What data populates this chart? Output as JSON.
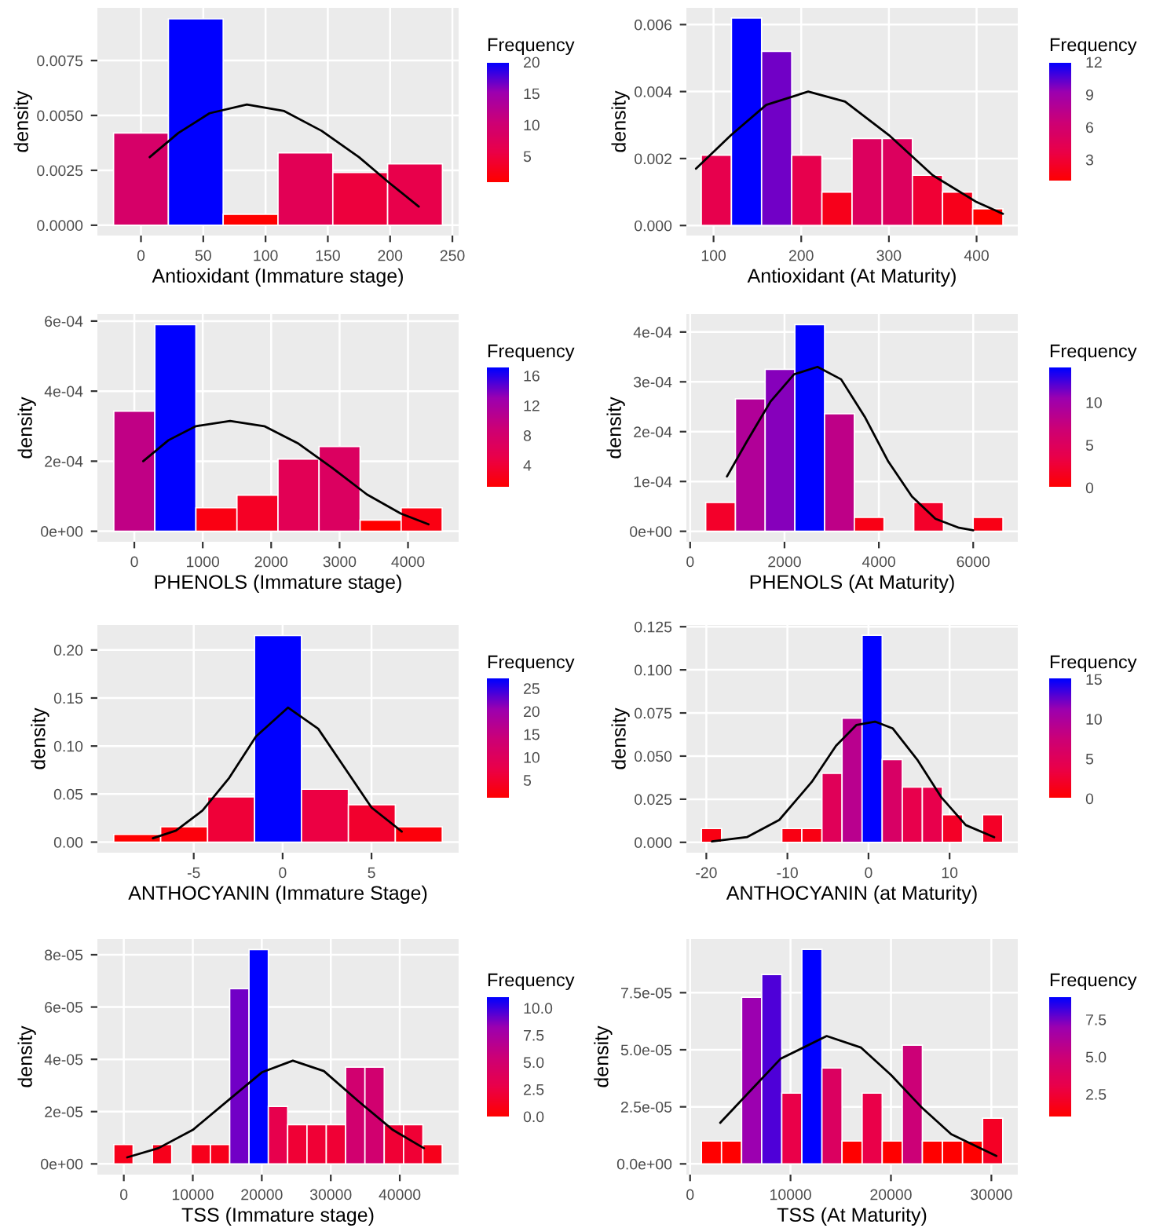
{
  "chart_data": [
    {
      "type": "histogram",
      "xlabel": "Antioxidant (Immature stage)",
      "ylabel": "density",
      "clabel": "Frequency",
      "grid": true,
      "xlim": [
        -35,
        255
      ],
      "xticks": [
        0,
        50,
        100,
        150,
        200,
        250
      ],
      "ylim": [
        -0.00047,
        0.0099
      ],
      "yticks": [
        {
          "value": 0,
          "label": "0.0000"
        },
        {
          "value": 0.0025,
          "label": "0.0025"
        },
        {
          "value": 0.005,
          "label": "0.0050"
        },
        {
          "value": 0.0075,
          "label": "0.0075"
        }
      ],
      "clim": [
        1,
        20
      ],
      "cticks": [
        5,
        10,
        15,
        20
      ],
      "series": [
        {
          "type": "histogram",
          "bins": [
            -22,
            22,
            66,
            110,
            154,
            198,
            242
          ],
          "values": [
            0.0042,
            0.0094,
            0.0005,
            0.0033,
            0.0024,
            0.0028
          ],
          "colors": [
            "#d60068",
            "#0000ff",
            "#ff0000",
            "#e20055",
            "#ed003d",
            "#e8004b"
          ]
        },
        {
          "type": "line",
          "color": "#000000",
          "x": [
            7,
            30,
            55,
            85,
            115,
            145,
            175,
            200,
            223
          ],
          "values": [
            0.0031,
            0.0042,
            0.0051,
            0.0055,
            0.0052,
            0.0043,
            0.0031,
            0.0019,
            0.00085
          ]
        }
      ]
    },
    {
      "type": "histogram",
      "xlabel": "Antioxidant (At Maturity)",
      "ylabel": "density",
      "clabel": "Frequency",
      "grid": true,
      "xlim": [
        69,
        447
      ],
      "xticks": [
        100,
        200,
        300,
        400
      ],
      "ylim": [
        -0.0003,
        0.0065
      ],
      "yticks": [
        {
          "value": 0,
          "label": "0.000"
        },
        {
          "value": 0.002,
          "label": "0.002"
        },
        {
          "value": 0.004,
          "label": "0.004"
        },
        {
          "value": 0.006,
          "label": "0.006"
        }
      ],
      "clim": [
        1,
        12
      ],
      "cticks": [
        3,
        6,
        9,
        12
      ],
      "series": [
        {
          "type": "histogram",
          "bins": [
            86,
            120.4,
            154.8,
            189.2,
            223.6,
            258,
            292.4,
            326.8,
            361.2,
            395.6,
            430
          ],
          "values": [
            0.0021,
            0.0062,
            0.0052,
            0.0021,
            0.001,
            0.0026,
            0.0026,
            0.0015,
            0.001,
            0.0005
          ],
          "colors": [
            "#e7004d",
            "#0000ff",
            "#7100c6",
            "#e7004d",
            "#f7001b",
            "#dc005e",
            "#dc005e",
            "#f00035",
            "#f7001b",
            "#ff0000"
          ]
        },
        {
          "type": "line",
          "color": "#000000",
          "x": [
            80,
            120,
            160,
            208,
            250,
            300,
            350,
            400,
            430
          ],
          "values": [
            0.0017,
            0.0027,
            0.0036,
            0.004,
            0.0037,
            0.0027,
            0.0015,
            0.0007,
            0.00035
          ]
        }
      ]
    },
    {
      "type": "histogram",
      "xlabel": "PHENOLS (Immature stage)",
      "ylabel": "density",
      "clabel": "Frequency",
      "grid": true,
      "xlim": [
        -540,
        4740
      ],
      "xticks": [
        0,
        1000,
        2000,
        3000,
        4000
      ],
      "ylim": [
        -3e-05,
        0.00062
      ],
      "yticks": [
        {
          "value": 0,
          "label": "0e+00"
        },
        {
          "value": 0.0002,
          "label": "2e-04"
        },
        {
          "value": 0.0004,
          "label": "4e-04"
        },
        {
          "value": 0.0006,
          "label": "6e-04"
        }
      ],
      "clim": [
        1,
        17
      ],
      "cticks": [
        4,
        8,
        12,
        16
      ],
      "series": [
        {
          "type": "histogram",
          "bins": [
            -300,
            300,
            900,
            1500,
            2100,
            2700,
            3300,
            3900,
            4500
          ],
          "values": [
            0.000343,
            0.00059,
            6.7e-05,
            0.000103,
            0.000206,
            0.000242,
            3.2e-05,
            6.7e-05
          ],
          "colors": [
            "#c00085",
            "#0000ff",
            "#fa0012",
            "#f50025",
            "#e20055",
            "#db0060",
            "#ff0000",
            "#fa0012"
          ]
        },
        {
          "type": "line",
          "color": "#000000",
          "x": [
            130,
            500,
            900,
            1400,
            1900,
            2400,
            2900,
            3400,
            3900,
            4300
          ],
          "values": [
            0.0002,
            0.00026,
            0.0003,
            0.000315,
            0.0003,
            0.00025,
            0.00018,
            0.000105,
            5e-05,
            2e-05
          ]
        }
      ]
    },
    {
      "type": "histogram",
      "xlabel": "PHENOLS (At Maturity)",
      "ylabel": "density",
      "clabel": "Frequency",
      "grid": true,
      "xlim": [
        -80,
        6945
      ],
      "xticks": [
        0,
        2000,
        4000,
        6000
      ],
      "ylim": [
        -2.1e-05,
        0.000436
      ],
      "yticks": [
        {
          "value": 0,
          "label": "0e+00"
        },
        {
          "value": 0.0001,
          "label": "1e-04"
        },
        {
          "value": 0.0002,
          "label": "2e-04"
        },
        {
          "value": 0.0003,
          "label": "3e-04"
        },
        {
          "value": 0.0004,
          "label": "4e-04"
        }
      ],
      "clim": [
        0,
        14
      ],
      "cticks": [
        0,
        5,
        10
      ],
      "series": [
        {
          "type": "histogram",
          "bins": [
            330,
            960,
            1590,
            2220,
            2850,
            3480,
            4110,
            4740,
            5370,
            6000,
            6630
          ],
          "values": [
            5.8e-05,
            0.000266,
            0.000325,
            0.000415,
            0.000236,
            2.8e-05,
            null,
            5.8e-05,
            null,
            2.8e-05
          ],
          "colors": [
            "#f3002a",
            "#b10098",
            "#8600bb",
            "#0000ff",
            "#be0087",
            "#f90015",
            null,
            "#f3002a",
            null,
            "#f90015"
          ]
        },
        {
          "type": "line",
          "color": "#000000",
          "x": [
            780,
            1200,
            1700,
            2200,
            2700,
            3200,
            3700,
            4200,
            4700,
            5200,
            5700,
            6000
          ],
          "values": [
            0.00011,
            0.00018,
            0.00026,
            0.000315,
            0.00033,
            0.000305,
            0.00023,
            0.00014,
            7e-05,
            2.5e-05,
            7e-06,
            2e-06
          ]
        }
      ]
    },
    {
      "type": "histogram",
      "xlabel": "ANTHOCYANIN (Immature Stage)",
      "ylabel": "density",
      "clabel": "Frequency",
      "grid": true,
      "xlim": [
        -10.42,
        9.9
      ],
      "xticks": [
        -5,
        0,
        5
      ],
      "ylim": [
        -0.011,
        0.226
      ],
      "yticks": [
        {
          "value": 0,
          "label": "0.00"
        },
        {
          "value": 0.05,
          "label": "0.05"
        },
        {
          "value": 0.1,
          "label": "0.10"
        },
        {
          "value": 0.15,
          "label": "0.15"
        },
        {
          "value": 0.2,
          "label": "0.20"
        }
      ],
      "clim": [
        1,
        27
      ],
      "cticks": [
        5,
        10,
        15,
        20,
        25
      ],
      "series": [
        {
          "type": "histogram",
          "bins": [
            -9.5,
            -6.86,
            -4.22,
            -1.58,
            1.06,
            3.7,
            6.34,
            8.98
          ],
          "values": [
            0.008,
            0.016,
            0.047,
            0.215,
            0.055,
            0.039,
            0.016
          ],
          "colors": [
            "#ff0000",
            "#fc000b",
            "#ef0038",
            "#0000ff",
            "#ec0043",
            "#f2002d",
            "#fc000b"
          ]
        },
        {
          "type": "line",
          "color": "#000000",
          "x": [
            -7.3,
            -6,
            -4.5,
            -3,
            -1.5,
            0.3,
            2,
            3.5,
            5,
            6.7
          ],
          "values": [
            0.004,
            0.012,
            0.033,
            0.067,
            0.11,
            0.14,
            0.118,
            0.077,
            0.036,
            0.011
          ]
        }
      ]
    },
    {
      "type": "histogram",
      "xlabel": "ANTHOCYANIN (at Maturity)",
      "ylabel": "density",
      "clabel": "Frequency",
      "grid": true,
      "xlim": [
        -22.46,
        18.41
      ],
      "xticks": [
        -20,
        -10,
        0,
        10
      ],
      "ylim": [
        -0.006,
        0.126
      ],
      "yticks": [
        {
          "value": 0,
          "label": "0.000"
        },
        {
          "value": 0.025,
          "label": "0.025"
        },
        {
          "value": 0.05,
          "label": "0.050"
        },
        {
          "value": 0.075,
          "label": "0.075"
        },
        {
          "value": 0.1,
          "label": "0.100"
        },
        {
          "value": 0.125,
          "label": "0.125"
        }
      ],
      "clim": [
        0,
        15
      ],
      "cticks": [
        0,
        5,
        10,
        15
      ],
      "series": [
        {
          "type": "histogram",
          "bins": [
            -20.6,
            -18.12,
            -15.65,
            -13.17,
            -10.69,
            -8.22,
            -5.74,
            -3.26,
            -0.79,
            1.69,
            4.17,
            6.64,
            9.12,
            11.6,
            14.07,
            16.55
          ],
          "values": [
            0.008,
            null,
            null,
            null,
            0.008,
            0.008,
            0.04,
            0.072,
            0.12,
            0.048,
            0.032,
            0.032,
            0.016,
            null,
            0.016
          ],
          "colors": [
            "#f90013",
            null,
            null,
            null,
            "#f90013",
            "#f90013",
            "#e00058",
            "#b9008e",
            "#0000ff",
            "#d80065",
            "#e8004c",
            "#e8004c",
            "#f40027",
            null,
            "#f40027"
          ]
        },
        {
          "type": "line",
          "color": "#000000",
          "x": [
            -19.3,
            -15,
            -11,
            -7,
            -4,
            -1.5,
            0.8,
            3,
            6,
            9,
            12,
            15.5
          ],
          "values": [
            0.0005,
            0.003,
            0.013,
            0.035,
            0.056,
            0.068,
            0.07,
            0.066,
            0.048,
            0.026,
            0.01,
            0.003
          ]
        }
      ]
    },
    {
      "type": "histogram",
      "xlabel": "TSS (Immature stage)",
      "ylabel": "density",
      "clabel": "Frequency",
      "grid": true,
      "xlim": [
        -3830,
        48530
      ],
      "xticks": [
        0,
        10000,
        20000,
        30000,
        40000
      ],
      "ylim": [
        -4.1e-06,
        8.6e-05
      ],
      "yticks": [
        {
          "value": 0,
          "label": "0e+00"
        },
        {
          "value": 2e-05,
          "label": "2e-05"
        },
        {
          "value": 4e-05,
          "label": "4e-05"
        },
        {
          "value": 6e-05,
          "label": "6e-05"
        },
        {
          "value": 8e-05,
          "label": "8e-05"
        }
      ],
      "clim": [
        0,
        11
      ],
      "cticks": [
        {
          "value": 0,
          "label": "0.0"
        },
        {
          "value": 2.5,
          "label": "2.5"
        },
        {
          "value": 5,
          "label": "5.0"
        },
        {
          "value": 7.5,
          "label": "7.5"
        },
        {
          "value": 10,
          "label": "10.0"
        }
      ],
      "series": [
        {
          "type": "histogram",
          "bins": [
            -1450,
            1350,
            4150,
            6950,
            9750,
            12550,
            15350,
            18150,
            20950,
            23750,
            26550,
            29350,
            32150,
            34950,
            37750,
            40550,
            43350,
            46150
          ],
          "values": [
            7.4e-06,
            null,
            7.4e-06,
            null,
            7.4e-06,
            7.4e-06,
            6.7e-05,
            8.2e-05,
            2.2e-05,
            1.5e-05,
            1.5e-05,
            1.5e-05,
            3.7e-05,
            3.7e-05,
            1.5e-05,
            1.5e-05,
            7.4e-06
          ],
          "colors": [
            "#f7001b",
            null,
            "#f7001b",
            null,
            "#f7001b",
            "#f7001b",
            "#7100c6",
            "#0000ff",
            "#e7004d",
            "#f00035",
            "#f00035",
            "#f00035",
            "#d1006f",
            "#d1006f",
            "#f00035",
            "#f00035",
            "#f7001b"
          ]
        },
        {
          "type": "line",
          "color": "#000000",
          "x": [
            500,
            5000,
            10000,
            15000,
            20000,
            24500,
            29000,
            34000,
            39000,
            43500
          ],
          "values": [
            2.5e-06,
            6e-06,
            1.3e-05,
            2.4e-05,
            3.5e-05,
            3.95e-05,
            3.55e-05,
            2.4e-05,
            1.3e-05,
            6e-06
          ]
        }
      ]
    },
    {
      "type": "histogram",
      "xlabel": "TSS (At Maturity)",
      "ylabel": "density",
      "clabel": "Frequency",
      "grid": true,
      "xlim": [
        -370,
        32630
      ],
      "xticks": [
        0,
        10000,
        20000,
        30000
      ],
      "ylim": [
        -4.7e-06,
        9.85e-05
      ],
      "yticks": [
        {
          "value": 0,
          "label": "0.0e+00"
        },
        {
          "value": 2.5e-05,
          "label": "2.5e-05"
        },
        {
          "value": 5e-05,
          "label": "5.0e-05"
        },
        {
          "value": 7.5e-05,
          "label": "7.5e-05"
        }
      ],
      "clim": [
        1,
        9
      ],
      "cticks": [
        {
          "value": 2.5,
          "label": "2.5"
        },
        {
          "value": 5,
          "label": "5.0"
        },
        {
          "value": 7.5,
          "label": "7.5"
        }
      ],
      "series": [
        {
          "type": "histogram",
          "bins": [
            1130,
            3130,
            5130,
            7130,
            9130,
            11130,
            13130,
            15130,
            17130,
            19130,
            21130,
            23130,
            25130,
            27130,
            29130,
            31130
          ],
          "values": [
            1e-05,
            1e-05,
            7.3e-05,
            8.3e-05,
            3.1e-05,
            9.4e-05,
            4.2e-05,
            1e-05,
            3.1e-05,
            1e-05,
            5.2e-05,
            1e-05,
            1e-05,
            1e-05,
            2e-05
          ],
          "colors": [
            "#ff0000",
            "#ff0000",
            "#9c00b0",
            "#4e00d8",
            "#ea0049",
            "#0000ff",
            "#db0060",
            "#ff0000",
            "#ea0049",
            "#ff0000",
            "#cc0077",
            "#ff0000",
            "#ff0000",
            "#ff0000",
            "#f50025"
          ]
        },
        {
          "type": "line",
          "color": "#000000",
          "x": [
            3000,
            6000,
            9000,
            13600,
            17000,
            20000,
            23000,
            26000,
            30500
          ],
          "values": [
            1.8e-05,
            3.2e-05,
            4.6e-05,
            5.6e-05,
            5.1e-05,
            3.9e-05,
            2.5e-05,
            1.3e-05,
            3.5e-06
          ]
        }
      ]
    }
  ]
}
